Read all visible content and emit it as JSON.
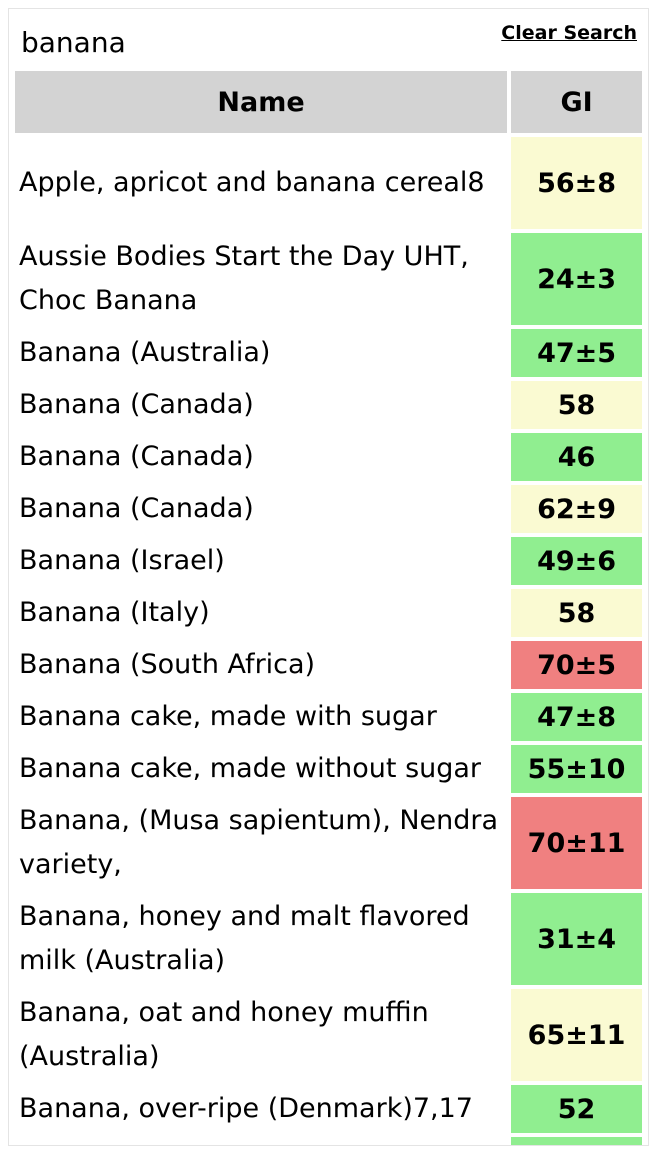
{
  "search": {
    "value": "banana",
    "clear_label": "Clear Search"
  },
  "table": {
    "headers": {
      "name": "Name",
      "gi": "GI"
    },
    "colors": {
      "low": "#90ee90",
      "medium": "#fafad2",
      "high": "#f08080"
    },
    "rows": [
      {
        "name": "Apple, apricot and banana cereal8",
        "gi": "56±8",
        "level": "medium"
      },
      {
        "name": "Aussie Bodies Start the Day UHT, Choc Banana",
        "gi": "24±3",
        "level": "low"
      },
      {
        "name": "Banana (Australia)",
        "gi": "47±5",
        "level": "low"
      },
      {
        "name": "Banana (Canada)",
        "gi": "58",
        "level": "medium"
      },
      {
        "name": "Banana (Canada)",
        "gi": "46",
        "level": "low"
      },
      {
        "name": "Banana (Canada)",
        "gi": "62±9",
        "level": "medium"
      },
      {
        "name": "Banana (Israel)",
        "gi": "49±6",
        "level": "low"
      },
      {
        "name": "Banana (Italy)",
        "gi": "58",
        "level": "medium"
      },
      {
        "name": "Banana (South Africa)",
        "gi": "70±5",
        "level": "high"
      },
      {
        "name": "Banana cake, made with sugar",
        "gi": "47±8",
        "level": "low"
      },
      {
        "name": "Banana cake, made without sugar",
        "gi": "55±10",
        "level": "low"
      },
      {
        "name": "Banana, (Musa sapientum), Nendra variety,",
        "gi": "70±11",
        "level": "high"
      },
      {
        "name": "Banana, honey and malt flavored milk (Australia)",
        "gi": "31±4",
        "level": "low"
      },
      {
        "name": "Banana, oat and honey muffin (Australia)",
        "gi": "65±11",
        "level": "medium"
      },
      {
        "name": "Banana, over-ripe (Denmark)7,17",
        "gi": "52",
        "level": "low"
      }
    ]
  }
}
